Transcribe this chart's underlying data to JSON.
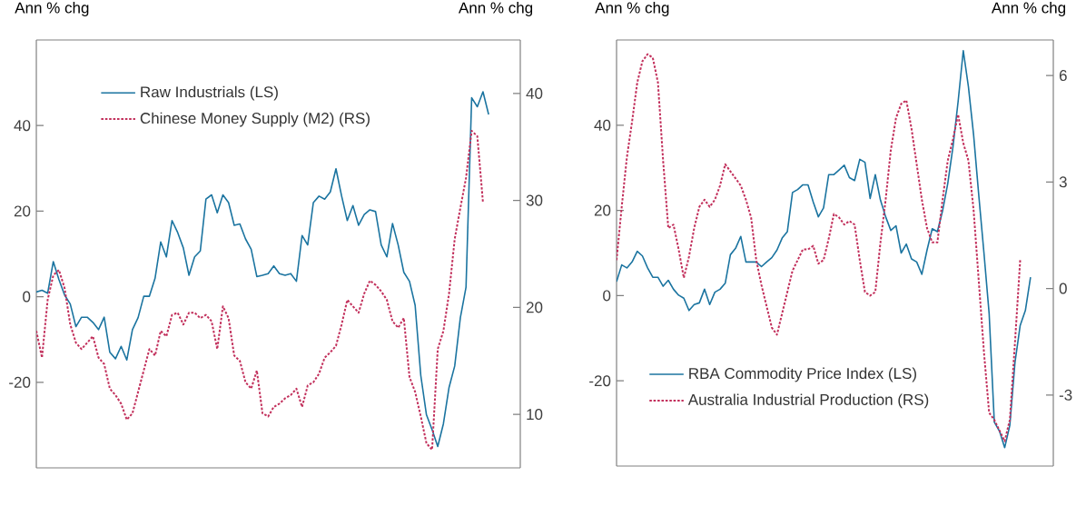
{
  "chart_data": [
    {
      "type": "line",
      "ylabel": "Ann % chg",
      "y2label": "Ann % chg",
      "categories": [
        null,
        null,
        null,
        null,
        null,
        null,
        null,
        null,
        null,
        null,
        null,
        null,
        null,
        null,
        null,
        null,
        null,
        null,
        null,
        null,
        null,
        null,
        null,
        null,
        null,
        null,
        null,
        null,
        null,
        null,
        null,
        null,
        null,
        null,
        null,
        null,
        null,
        null,
        null,
        null,
        null,
        null,
        null,
        null,
        null,
        null,
        null,
        null,
        null,
        null,
        null,
        null,
        null,
        null,
        null,
        null,
        null,
        null,
        null,
        null,
        null,
        null,
        null,
        null,
        null,
        null,
        null,
        null,
        null,
        null,
        null,
        null,
        null,
        null,
        null,
        null,
        null,
        null,
        null,
        null,
        null
      ],
      "series": [
        {
          "name": "Raw Industrials (LS)",
          "color": "#1b74a0",
          "line_style": "solid",
          "values": [
            1.1,
            1.5,
            0.8,
            8.2,
            4,
            0.4,
            -1.7,
            -7,
            -4.8,
            -4.8,
            -6,
            -7.7,
            -4.8,
            -13,
            -14.5,
            -11.6,
            -14.8,
            -7.7,
            -4.9,
            0.1,
            0.1,
            4.3,
            12.8,
            9.3,
            17.8,
            15,
            11.4,
            5,
            9.3,
            10.7,
            22.8,
            23.8,
            19.6,
            23.8,
            22,
            16.7,
            17,
            13.5,
            11.1,
            4.7,
            5,
            5.4,
            7.2,
            5.4,
            5,
            5.4,
            3.6,
            14.3,
            12.1,
            22,
            23.5,
            22.8,
            24.5,
            29.9,
            23.5,
            17.8,
            21.3,
            16.7,
            19.2,
            20.3,
            19.9,
            12.1,
            9.3,
            17.1,
            12.1,
            5.7,
            3.6,
            -2,
            -18.4,
            -27.6,
            -31.1,
            -35,
            -29.7,
            -21.2,
            -16.2,
            -4.9,
            2.2,
            46.5,
            44.4,
            47.9,
            42.6
          ]
        },
        {
          "name": "Chinese Money Supply (M2) (RS)",
          "color": "#c2305c",
          "line_style": "dotted",
          "axis": "y2",
          "values": [
            17.8,
            15.3,
            20.7,
            23,
            23.5,
            21.8,
            18.4,
            16.7,
            16.1,
            16.7,
            17.3,
            15.3,
            14.7,
            12.4,
            11.8,
            11,
            9.5,
            10.1,
            12.1,
            14.1,
            16.1,
            15.5,
            17.8,
            17.3,
            19.3,
            19.5,
            18.4,
            19.5,
            19.5,
            19,
            19.3,
            18.7,
            16.1,
            20.1,
            19,
            15.5,
            15,
            13,
            12.4,
            14.1,
            10.1,
            9.8,
            10.7,
            11,
            11.5,
            11.8,
            12.4,
            10.7,
            12.7,
            13,
            13.8,
            15.3,
            15.8,
            16.4,
            18.4,
            20.7,
            20.1,
            19.5,
            21.3,
            22.5,
            22.1,
            21.5,
            20.7,
            18.7,
            18.1,
            19,
            13.5,
            12.1,
            9.8,
            7.3,
            6.7,
            16.1,
            17.8,
            21.3,
            26.4,
            29.3,
            32.1,
            36.5,
            36,
            29.8,
            null
          ]
        }
      ],
      "ylim": [
        -40,
        60
      ],
      "yticks": [
        -20,
        0,
        20,
        40
      ],
      "y2lim": [
        5,
        45
      ],
      "y2ticks": [
        10,
        20,
        30,
        40
      ],
      "legend": "top left"
    },
    {
      "type": "line",
      "ylabel": "Ann % chg",
      "y2label": "Ann % chg",
      "categories": [
        null,
        null,
        null,
        null,
        null,
        null,
        null,
        null,
        null,
        null,
        null,
        null,
        null,
        null,
        null,
        null,
        null,
        null,
        null,
        null,
        null,
        null,
        null,
        null,
        null,
        null,
        null,
        null,
        null,
        null,
        null,
        null,
        null,
        null,
        null,
        null,
        null,
        null,
        null,
        null,
        null,
        null,
        null,
        null,
        null,
        null,
        null,
        null,
        null,
        null,
        null,
        null,
        null,
        null,
        null,
        null,
        null,
        null,
        null,
        null,
        null,
        null,
        null,
        null,
        null,
        null,
        null,
        null,
        null,
        null,
        null,
        null,
        null,
        null,
        null,
        null,
        null,
        null,
        null,
        null,
        null
      ],
      "series": [
        {
          "name": "RBA Commodity Price Index (LS)",
          "color": "#1b74a0",
          "line_style": "solid",
          "values": [
            3.3,
            7.2,
            6.5,
            7.9,
            10.4,
            9.3,
            6.5,
            4.3,
            4.3,
            2.2,
            3.6,
            1.5,
            0.1,
            -0.6,
            -3.5,
            -2.1,
            -1.7,
            1.5,
            -2.1,
            0.8,
            1.5,
            2.9,
            9.6,
            11.1,
            13.9,
            7.9,
            7.9,
            7.9,
            6.8,
            7.9,
            8.9,
            10.7,
            13.5,
            15,
            24.2,
            24.9,
            26,
            26,
            22,
            18.5,
            20.6,
            28.4,
            28.4,
            29.5,
            30.6,
            27.7,
            27,
            32,
            31.3,
            22.8,
            28.4,
            22.4,
            18.5,
            15.3,
            16.4,
            10,
            12.1,
            8.6,
            7.9,
            5,
            10.7,
            15.7,
            15,
            19.9,
            26.3,
            34.8,
            45.5,
            57.5,
            49,
            37.7,
            23.5,
            10,
            -4.2,
            -29.7,
            -31.8,
            -35.7,
            -30.4,
            -15.6,
            -7,
            -3.5,
            4.3
          ]
        },
        {
          "name": "Australia Industrial Production (RS)",
          "color": "#c2305c",
          "line_style": "dotted",
          "axis": "y2",
          "values": [
            0.8,
            2.3,
            3.7,
            4.7,
            5.8,
            6.4,
            6.6,
            6.5,
            5.8,
            3.6,
            1.7,
            1.8,
            1.1,
            0.3,
            0.9,
            1.7,
            2.3,
            2.5,
            2.3,
            2.5,
            2.9,
            3.5,
            3.3,
            3.1,
            2.9,
            2.5,
            2,
            0.8,
            0.1,
            -0.5,
            -1.1,
            -1.3,
            -0.7,
            -0.1,
            0.5,
            0.8,
            1.1,
            1.1,
            1.2,
            0.7,
            0.8,
            1.4,
            2.1,
            2,
            1.8,
            1.9,
            1.8,
            0.8,
            -0.1,
            -0.2,
            -0.1,
            1.3,
            2.5,
            3.9,
            4.8,
            5.2,
            5.3,
            4.5,
            3.5,
            2.5,
            1.7,
            1.3,
            1.3,
            2.5,
            3.6,
            4.2,
            4.9,
            4.1,
            3.6,
            2.2,
            0.2,
            -1.8,
            -3.5,
            -3.7,
            -4,
            -4.3,
            -3.7,
            -1.5,
            0.8,
            null,
            null
          ]
        }
      ],
      "ylim": [
        -40,
        60
      ],
      "yticks": [
        -20,
        0,
        20,
        40
      ],
      "y2lim": [
        -5,
        7
      ],
      "y2ticks": [
        -3,
        0,
        3,
        6
      ],
      "legend": "bottom left"
    }
  ]
}
